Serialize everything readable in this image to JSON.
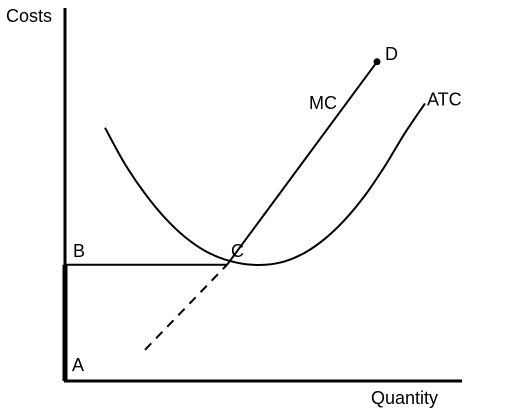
{
  "chart_data": {
    "type": "line",
    "ylabel": "Costs",
    "xlabel": "Quantity",
    "xlim": [
      0,
      10
    ],
    "ylim": [
      0,
      10
    ],
    "grid": false,
    "legend": "none",
    "series": [
      {
        "name": "ATC",
        "style": "solid",
        "points": [
          [
            1.0,
            7.3
          ],
          [
            1.5,
            6.25
          ],
          [
            2.0,
            5.4
          ],
          [
            2.5,
            4.7
          ],
          [
            3.0,
            4.15
          ],
          [
            3.5,
            3.75
          ],
          [
            4.0,
            3.5
          ],
          [
            4.5,
            3.37
          ],
          [
            5.0,
            3.35
          ],
          [
            5.5,
            3.45
          ],
          [
            6.0,
            3.7
          ],
          [
            6.5,
            4.1
          ],
          [
            7.0,
            4.65
          ],
          [
            7.5,
            5.35
          ],
          [
            8.0,
            6.2
          ],
          [
            8.5,
            7.15
          ],
          [
            9.0,
            8.0
          ]
        ]
      },
      {
        "name": "MC",
        "style": "solid",
        "points": [
          [
            4.05,
            3.35
          ],
          [
            7.8,
            9.2
          ]
        ]
      },
      {
        "name": "",
        "style": "dashed",
        "points": [
          [
            2.0,
            0.9
          ],
          [
            4.05,
            3.35
          ]
        ]
      },
      {
        "name": "",
        "style": "solid",
        "points": [
          [
            0.0,
            3.35
          ],
          [
            4.05,
            3.35
          ]
        ]
      },
      {
        "name": "",
        "style": "thick",
        "points": [
          [
            0.0,
            0.0
          ],
          [
            0.0,
            3.35
          ]
        ]
      }
    ],
    "points": [
      {
        "label": "A",
        "x": 0.0,
        "y": 0.0
      },
      {
        "label": "B",
        "x": 0.0,
        "y": 3.35
      },
      {
        "label": "C",
        "x": 4.05,
        "y": 3.35
      },
      {
        "label": "D",
        "x": 7.8,
        "y": 9.2
      }
    ],
    "marker_points": [
      "D"
    ]
  }
}
